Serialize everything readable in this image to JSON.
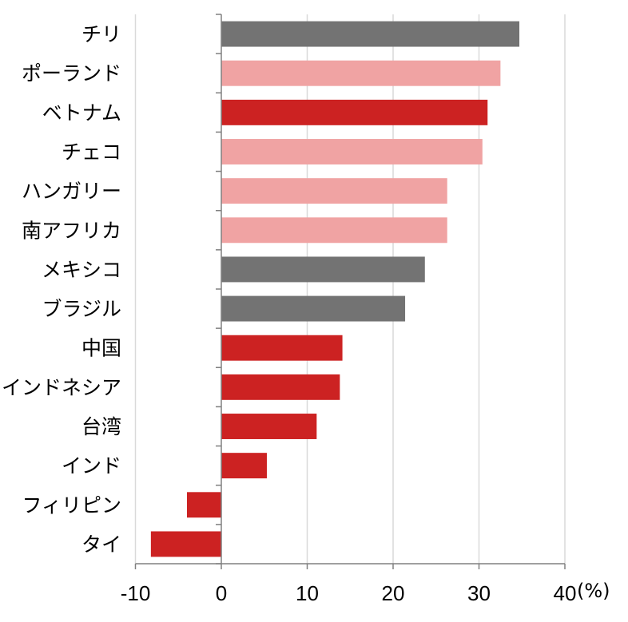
{
  "chart_data": {
    "type": "bar",
    "orientation": "horizontal",
    "categories": [
      "チリ",
      "ポーランド",
      "ベトナム",
      "チェコ",
      "ハンガリー",
      "南アフリカ",
      "メキシコ",
      "ブラジル",
      "中国",
      "インドネシア",
      "台湾",
      "インド",
      "フィリピン",
      "タイ"
    ],
    "values": [
      34.7,
      32.5,
      31.0,
      30.4,
      26.3,
      26.3,
      23.7,
      21.4,
      14.1,
      13.8,
      11.1,
      5.3,
      -4.0,
      -8.2
    ],
    "groups": [
      "latin",
      "europe",
      "asia",
      "europe",
      "europe",
      "europe",
      "latin",
      "latin",
      "asia",
      "asia",
      "asia",
      "asia",
      "asia",
      "asia"
    ],
    "group_colors": {
      "latin": "#737373",
      "europe": "#f0a3a3",
      "asia": "#cc2222"
    },
    "xlim": [
      -10,
      40
    ],
    "xticks": [
      "-10",
      "0",
      "10",
      "20",
      "30",
      "40"
    ],
    "xtick_colors": [
      "#ff0000",
      "#000000",
      "#000000",
      "#000000",
      "#000000",
      "#000000"
    ],
    "unit": "(%)",
    "grid": "vertical"
  }
}
